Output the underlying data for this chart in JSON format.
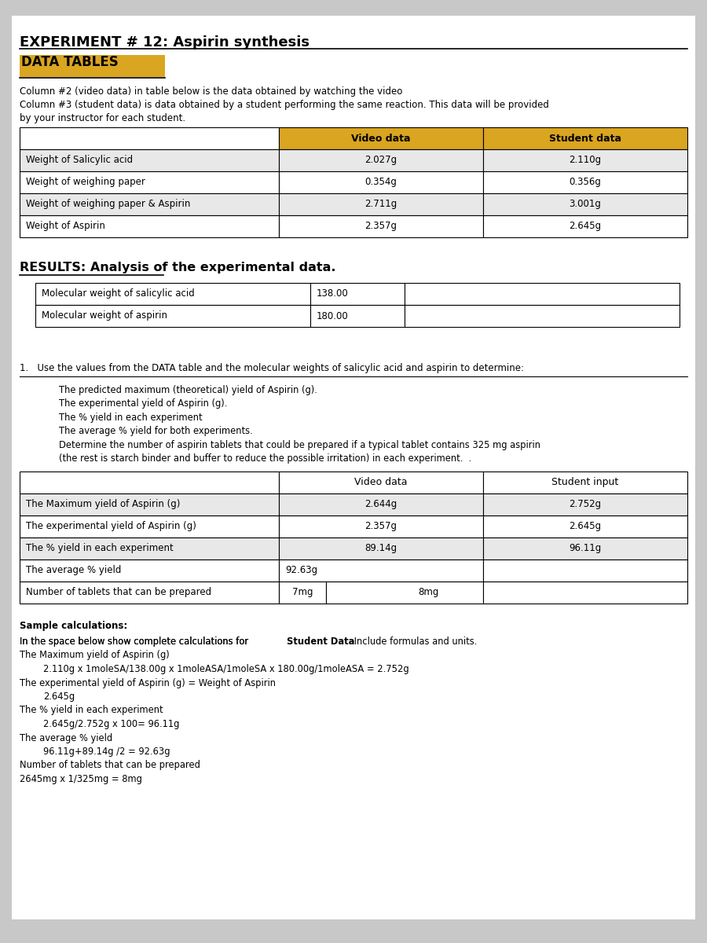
{
  "title": "EXPERIMENT # 12: Aspirin synthesis",
  "section1_title": "DATA TABLES",
  "section1_desc1": "Column #2 (video data) in table below is the data obtained by watching the video",
  "section1_desc2": "Column #3 (student data) is data obtained by a student performing the same reaction. This data will be provided",
  "section1_desc3": "by your instructor for each student.",
  "table1_headers": [
    "",
    "Video data",
    "Student data"
  ],
  "table1_rows": [
    [
      "Weight of Salicylic acid",
      "2.027g",
      "2.110g"
    ],
    [
      "Weight of weighing paper",
      "0.354g",
      "0.356g"
    ],
    [
      "Weight of weighing paper & Aspirin",
      "2.711g",
      "3.001g"
    ],
    [
      "Weight of Aspirin",
      "2.357g",
      "2.645g"
    ]
  ],
  "section2_title": "RESULTS: Analysis of the experimental data.",
  "mw_table_rows": [
    [
      "Molecular weight of salicylic acid",
      "138.00"
    ],
    [
      "Molecular weight of aspirin",
      "180.00"
    ]
  ],
  "instruction": "1.   Use the values from the DATA table and the molecular weights of salicylic acid and aspirin to determine:",
  "bullet_points": [
    "The predicted maximum (theoretical) yield of Aspirin (g).",
    "The experimental yield of Aspirin (g).",
    "The % yield in each experiment",
    "The average % yield for both experiments.",
    "Determine the number of aspirin tablets that could be prepared if a typical tablet contains 325 mg aspirin",
    "(the rest is starch binder and buffer to reduce the possible irritation) in each experiment.  ."
  ],
  "table2_headers": [
    "",
    "Video data",
    "Student input"
  ],
  "table2_rows": [
    [
      "The Maximum yield of Aspirin (g)",
      "2.644g",
      "2.752g"
    ],
    [
      "The experimental yield of Aspirin (g)",
      "2.357g",
      "2.645g"
    ],
    [
      "The % yield in each experiment",
      "89.14g",
      "96.11g"
    ],
    [
      "The average % yield",
      "92.63g",
      ""
    ]
  ],
  "tablets_row": [
    "Number of tablets that can be prepared",
    "7mg",
    "8mg"
  ],
  "sample_calc_title": "Sample calculations:",
  "sample_calc_lines": [
    "In the space below show complete calculations for {bold}Student Data{/bold} Include formulas and units.",
    "The Maximum yield of Aspirin (g)",
    "    2.110g x 1moleSA/138.00g x 1moleASA/1moleSA x 180.00g/1moleASA = 2.752g",
    "The experimental yield of Aspirin (g) = Weight of Aspirin",
    "    2.645g",
    "The % yield in each experiment",
    "    2.645g/2.752g x 100= 96.11g",
    "The average % yield",
    "    96.11g+89.14g /2 = 92.63g",
    "Number of tablets that can be prepared",
    "2645mg x 1/325mg = 8mg"
  ],
  "highlight_color": "#DAA520",
  "bg_color": "#d0d0d0",
  "page_bg": "#c8c8c8",
  "white": "#ffffff",
  "light_gray": "#e8e8e8"
}
